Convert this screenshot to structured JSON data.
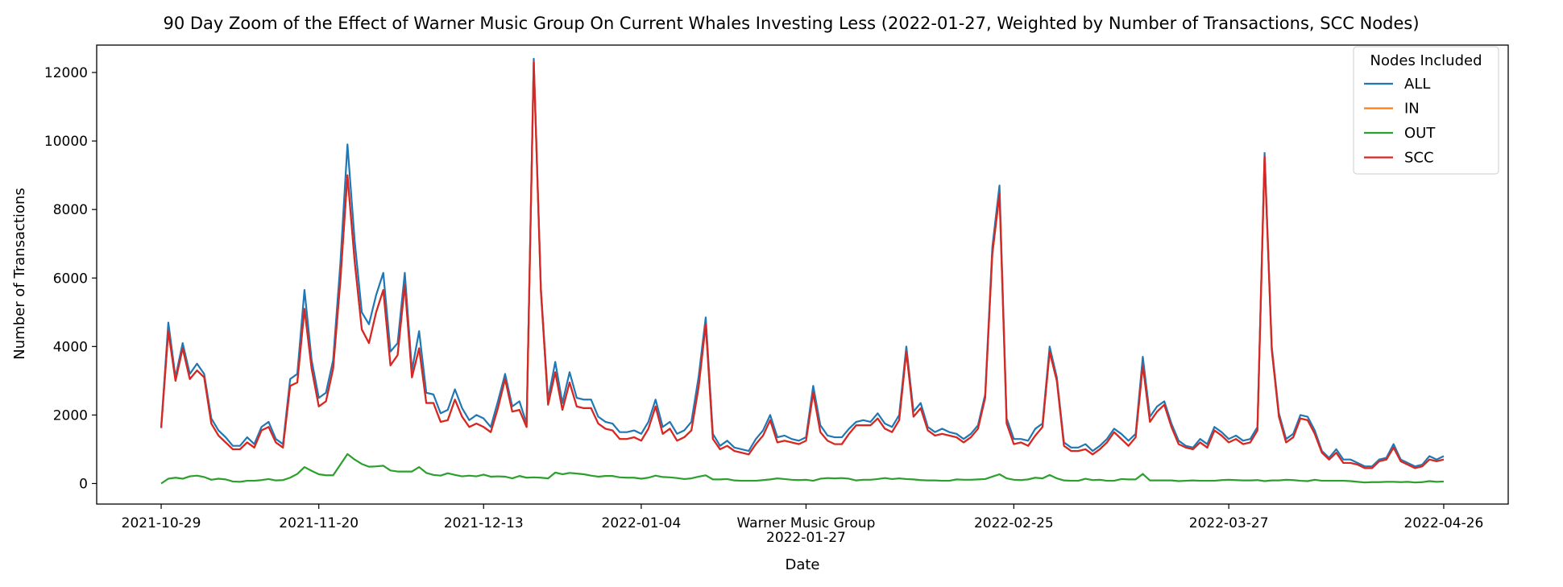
{
  "chart_data": {
    "type": "line",
    "title": "90 Day Zoom of the Effect of Warner Music Group On Current Whales Investing Less (2022-01-27, Weighted by Number of Transactions, SCC Nodes)",
    "xlabel": "Date",
    "ylabel": "Number of Transactions",
    "x_start": "2021-10-29",
    "x_end": "2022-04-26",
    "xlim": [
      "2021-10-20",
      "2022-05-05"
    ],
    "ylim": [
      -600,
      12800
    ],
    "yticks": [
      0,
      2000,
      4000,
      6000,
      8000,
      10000,
      12000
    ],
    "xticks": [
      {
        "date": "2021-10-29",
        "label": "2021-10-29"
      },
      {
        "date": "2021-11-20",
        "label": "2021-11-20"
      },
      {
        "date": "2021-12-13",
        "label": "2021-12-13"
      },
      {
        "date": "2022-01-04",
        "label": "2022-01-04"
      },
      {
        "date": "2022-02-25",
        "label": "2022-02-25"
      },
      {
        "date": "2022-03-27",
        "label": "2022-03-27"
      },
      {
        "date": "2022-04-26",
        "label": "2022-04-26"
      }
    ],
    "event": {
      "date": "2022-01-27",
      "label_line1": "Warner Music Group",
      "label_line2": "2022-01-27"
    },
    "grid": false,
    "legend": {
      "title": "Nodes Included",
      "position": "top-right"
    },
    "series": [
      {
        "name": "ALL",
        "color": "#1f77b4",
        "values": [
          1650,
          4700,
          3100,
          4100,
          3200,
          3500,
          3200,
          1900,
          1550,
          1350,
          1100,
          1100,
          1350,
          1150,
          1650,
          1800,
          1300,
          1150,
          3050,
          3200,
          5650,
          3600,
          2500,
          2650,
          3600,
          6400,
          9900,
          7100,
          5000,
          4650,
          5500,
          6150,
          3850,
          4100,
          6150,
          3300,
          4450,
          2650,
          2600,
          2050,
          2150,
          2750,
          2200,
          1850,
          2000,
          1900,
          1650,
          2400,
          3200,
          2250,
          2400,
          1750,
          12400,
          5700,
          2450,
          3550,
          2350,
          3250,
          2500,
          2450,
          2450,
          1950,
          1800,
          1750,
          1500,
          1500,
          1550,
          1450,
          1800,
          2450,
          1650,
          1800,
          1450,
          1550,
          1800,
          3100,
          4850,
          1450,
          1100,
          1250,
          1050,
          1000,
          950,
          1300,
          1550,
          2000,
          1350,
          1400,
          1300,
          1250,
          1350,
          2850,
          1700,
          1400,
          1350,
          1350,
          1600,
          1800,
          1850,
          1800,
          2050,
          1750,
          1650,
          2000,
          4000,
          2100,
          2350,
          1650,
          1500,
          1600,
          1500,
          1450,
          1300,
          1450,
          1700,
          2600,
          6900,
          8700,
          1900,
          1300,
          1300,
          1250,
          1600,
          1750,
          4000,
          3100,
          1200,
          1050,
          1050,
          1150,
          950,
          1100,
          1300,
          1600,
          1450,
          1250,
          1450,
          3700,
          1950,
          2250,
          2400,
          1750,
          1250,
          1100,
          1050,
          1300,
          1150,
          1650,
          1500,
          1300,
          1400,
          1250,
          1300,
          1650,
          9650,
          4000,
          2050,
          1300,
          1450,
          2000,
          1950,
          1550,
          950,
          750,
          1000,
          700,
          700,
          600,
          500,
          500,
          700,
          750,
          1150,
          700,
          600,
          500,
          550,
          800,
          700,
          800
        ]
      },
      {
        "name": "IN",
        "color": "#ff7f0e",
        "values": [
          1620,
          4450,
          3000,
          3950,
          3050,
          3300,
          3100,
          1750,
          1400,
          1200,
          1000,
          1000,
          1200,
          1050,
          1550,
          1650,
          1200,
          1050,
          2850,
          2950,
          5100,
          3350,
          2250,
          2400,
          3350,
          5900,
          9000,
          6500,
          4500,
          4100,
          5000,
          5650,
          3450,
          3750,
          5800,
          3100,
          3950,
          2350,
          2350,
          1800,
          1850,
          2450,
          1950,
          1650,
          1750,
          1650,
          1500,
          2200,
          3050,
          2100,
          2150,
          1650,
          12300,
          5600,
          2300,
          3250,
          2150,
          2950,
          2250,
          2200,
          2200,
          1750,
          1600,
          1550,
          1300,
          1300,
          1350,
          1250,
          1600,
          2250,
          1450,
          1600,
          1250,
          1350,
          1550,
          2800,
          4650,
          1300,
          1000,
          1100,
          950,
          900,
          850,
          1150,
          1400,
          1850,
          1200,
          1250,
          1200,
          1150,
          1250,
          2650,
          1500,
          1250,
          1150,
          1150,
          1450,
          1700,
          1700,
          1700,
          1900,
          1600,
          1500,
          1850,
          3850,
          1950,
          2200,
          1550,
          1400,
          1450,
          1400,
          1350,
          1200,
          1350,
          1600,
          2500,
          6700,
          8450,
          1750,
          1150,
          1200,
          1100,
          1400,
          1650,
          3850,
          3000,
          1100,
          950,
          950,
          1000,
          850,
          1000,
          1200,
          1500,
          1300,
          1100,
          1350,
          3450,
          1800,
          2100,
          2300,
          1650,
          1150,
          1050,
          1000,
          1200,
          1050,
          1550,
          1400,
          1200,
          1300,
          1150,
          1200,
          1550,
          9550,
          3900,
          1950,
          1200,
          1350,
          1900,
          1850,
          1450,
          900,
          700,
          900,
          600,
          600,
          550,
          450,
          450,
          650,
          700,
          1050,
          650,
          550,
          450,
          500,
          700,
          650,
          700
        ]
      },
      {
        "name": "OUT",
        "color": "#2ca02c",
        "values": [
          0,
          140,
          170,
          140,
          210,
          230,
          190,
          110,
          140,
          120,
          60,
          50,
          80,
          80,
          100,
          130,
          90,
          100,
          170,
          280,
          480,
          370,
          270,
          240,
          240,
          550,
          860,
          700,
          570,
          490,
          500,
          520,
          380,
          350,
          350,
          350,
          480,
          310,
          250,
          230,
          300,
          250,
          210,
          230,
          210,
          260,
          200,
          210,
          200,
          150,
          220,
          170,
          180,
          170,
          150,
          320,
          270,
          310,
          290,
          270,
          230,
          200,
          220,
          220,
          180,
          170,
          170,
          140,
          170,
          230,
          190,
          180,
          160,
          130,
          150,
          200,
          240,
          120,
          120,
          130,
          90,
          80,
          80,
          80,
          100,
          120,
          150,
          130,
          110,
          100,
          110,
          80,
          140,
          160,
          150,
          160,
          140,
          90,
          110,
          110,
          130,
          160,
          130,
          150,
          130,
          120,
          100,
          90,
          90,
          80,
          80,
          120,
          110,
          110,
          120,
          130,
          200,
          270,
          150,
          110,
          100,
          120,
          170,
          150,
          250,
          150,
          90,
          80,
          80,
          140,
          100,
          110,
          80,
          80,
          130,
          120,
          120,
          280,
          90,
          90,
          90,
          90,
          70,
          80,
          90,
          80,
          80,
          80,
          100,
          110,
          100,
          90,
          90,
          100,
          70,
          90,
          90,
          110,
          100,
          80,
          70,
          110,
          80,
          80,
          80,
          80,
          70,
          50,
          30,
          40,
          40,
          50,
          50,
          40,
          50,
          30,
          40,
          70,
          50,
          60
        ]
      },
      {
        "name": "SCC",
        "color": "#d62728",
        "values": [
          1620,
          4450,
          3000,
          3950,
          3050,
          3300,
          3100,
          1750,
          1400,
          1200,
          1000,
          1000,
          1200,
          1050,
          1550,
          1650,
          1200,
          1050,
          2850,
          2950,
          5100,
          3350,
          2250,
          2400,
          3350,
          5900,
          9000,
          6500,
          4500,
          4100,
          5000,
          5650,
          3450,
          3750,
          5800,
          3100,
          3950,
          2350,
          2350,
          1800,
          1850,
          2450,
          1950,
          1650,
          1750,
          1650,
          1500,
          2200,
          3050,
          2100,
          2150,
          1650,
          12300,
          5600,
          2300,
          3250,
          2150,
          2950,
          2250,
          2200,
          2200,
          1750,
          1600,
          1550,
          1300,
          1300,
          1350,
          1250,
          1600,
          2250,
          1450,
          1600,
          1250,
          1350,
          1550,
          2800,
          4650,
          1300,
          1000,
          1100,
          950,
          900,
          850,
          1150,
          1400,
          1850,
          1200,
          1250,
          1200,
          1150,
          1250,
          2650,
          1500,
          1250,
          1150,
          1150,
          1450,
          1700,
          1700,
          1700,
          1900,
          1600,
          1500,
          1850,
          3850,
          1950,
          2200,
          1550,
          1400,
          1450,
          1400,
          1350,
          1200,
          1350,
          1600,
          2500,
          6700,
          8450,
          1750,
          1150,
          1200,
          1100,
          1400,
          1650,
          3850,
          3000,
          1100,
          950,
          950,
          1000,
          850,
          1000,
          1200,
          1500,
          1300,
          1100,
          1350,
          3450,
          1800,
          2100,
          2300,
          1650,
          1150,
          1050,
          1000,
          1200,
          1050,
          1550,
          1400,
          1200,
          1300,
          1150,
          1200,
          1550,
          9550,
          3900,
          1950,
          1200,
          1350,
          1900,
          1850,
          1450,
          900,
          700,
          900,
          600,
          600,
          550,
          450,
          450,
          650,
          700,
          1050,
          650,
          550,
          450,
          500,
          700,
          650,
          700
        ]
      }
    ]
  }
}
